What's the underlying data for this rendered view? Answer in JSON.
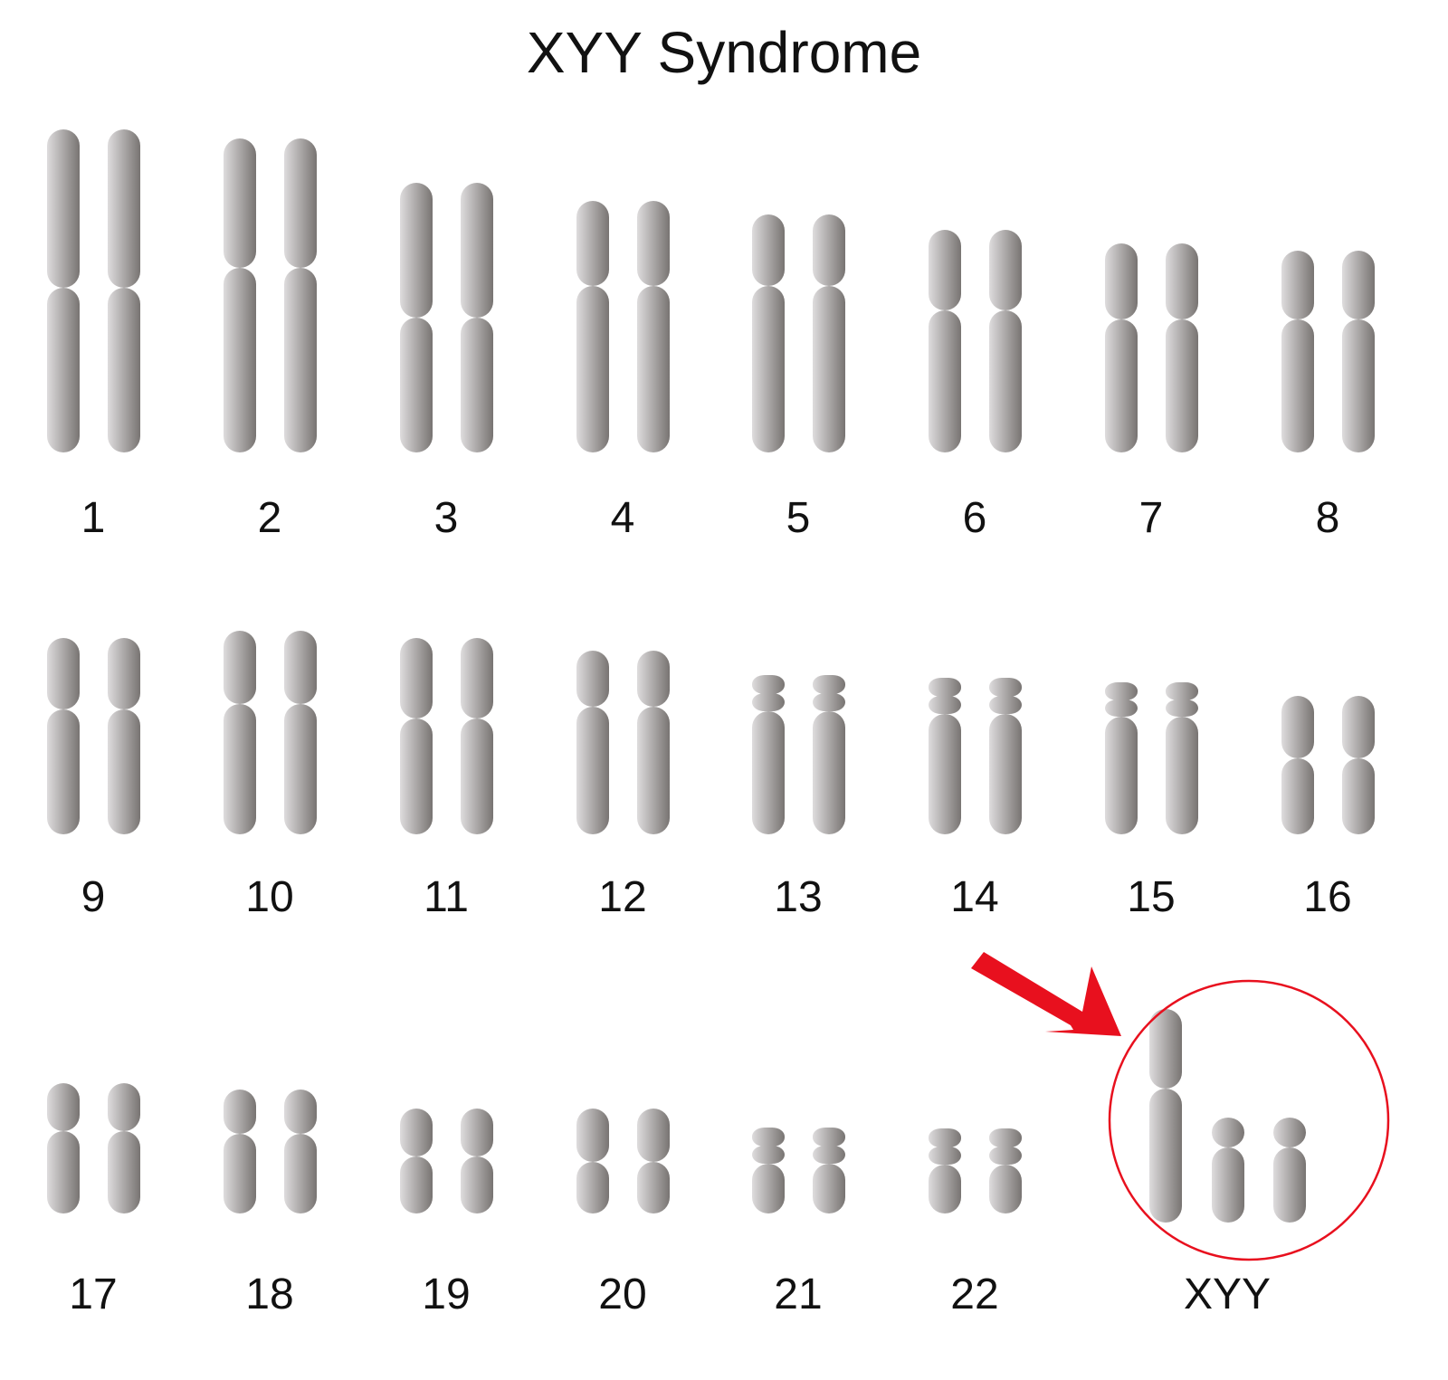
{
  "title": "XYY Syndrome",
  "chromosomes": [
    {
      "label": "1"
    },
    {
      "label": "2"
    },
    {
      "label": "3"
    },
    {
      "label": "4"
    },
    {
      "label": "5"
    },
    {
      "label": "6"
    },
    {
      "label": "7"
    },
    {
      "label": "8"
    },
    {
      "label": "9"
    },
    {
      "label": "10"
    },
    {
      "label": "11"
    },
    {
      "label": "12"
    },
    {
      "label": "13"
    },
    {
      "label": "14"
    },
    {
      "label": "15"
    },
    {
      "label": "16"
    },
    {
      "label": "17"
    },
    {
      "label": "18"
    },
    {
      "label": "19"
    },
    {
      "label": "20"
    },
    {
      "label": "21"
    },
    {
      "label": "22"
    }
  ],
  "sex_chromosomes": {
    "label": "XYY"
  },
  "colors": {
    "chromosome_light": "#dedcdd",
    "chromosome_dark": "#787472",
    "highlight": "#e8101e"
  }
}
